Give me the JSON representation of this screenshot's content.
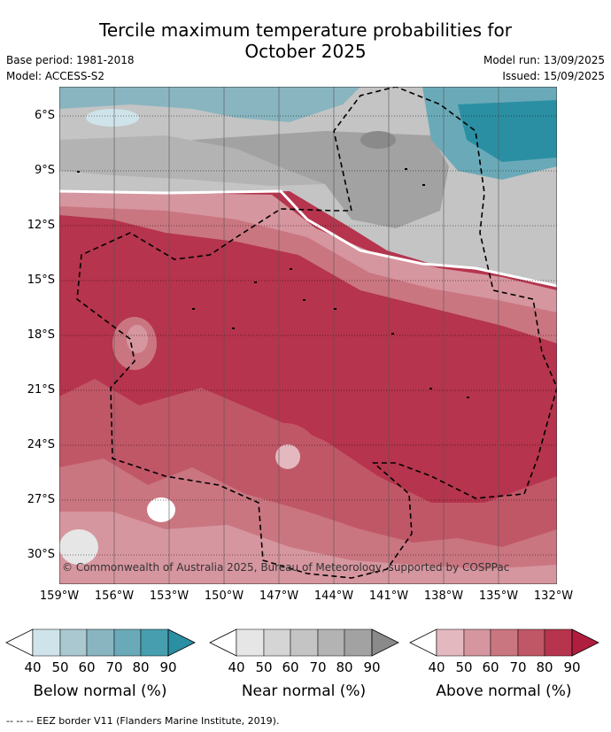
{
  "title_line1": "Tercile maximum temperature probabilities for",
  "title_line2": "October 2025",
  "meta": {
    "base_period": "Base period: 1981-2018",
    "model": "Model: ACCESS-S2",
    "model_run": "Model run: 13/09/2025",
    "issued": "Issued: 15/09/2025"
  },
  "map": {
    "lat_labels": [
      "6°S",
      "9°S",
      "12°S",
      "15°S",
      "18°S",
      "21°S",
      "24°S",
      "27°S",
      "30°S"
    ],
    "lon_labels": [
      "159°W",
      "156°W",
      "153°W",
      "150°W",
      "147°W",
      "144°W",
      "141°W",
      "138°W",
      "135°W",
      "132°W"
    ],
    "copyright": "© Commonwealth of Australia 2025, Bureau of Meteorology, supported by COSPPac"
  },
  "legends": [
    {
      "title": "Below normal (%)",
      "ticks": [
        "40",
        "50",
        "60",
        "70",
        "80",
        "90"
      ],
      "colors": [
        "#cfe4ea",
        "#a9c8cf",
        "#88b5c0",
        "#6aaab8",
        "#479eae",
        "#2b8fa3"
      ]
    },
    {
      "title": "Near normal (%)",
      "ticks": [
        "40",
        "50",
        "60",
        "70",
        "80",
        "90"
      ],
      "colors": [
        "#e6e6e6",
        "#d5d5d5",
        "#c4c4c4",
        "#b3b3b3",
        "#a2a2a2",
        "#8a8a8a"
      ]
    },
    {
      "title": "Above normal (%)",
      "ticks": [
        "40",
        "50",
        "60",
        "70",
        "80",
        "90"
      ],
      "colors": [
        "#e3b8bf",
        "#d6969f",
        "#ca7681",
        "#c05767",
        "#b6344d",
        "#b01e3f"
      ]
    }
  ],
  "footer": "--  --  -- EEZ border V11 (Flanders Marine Institute, 2019)."
}
